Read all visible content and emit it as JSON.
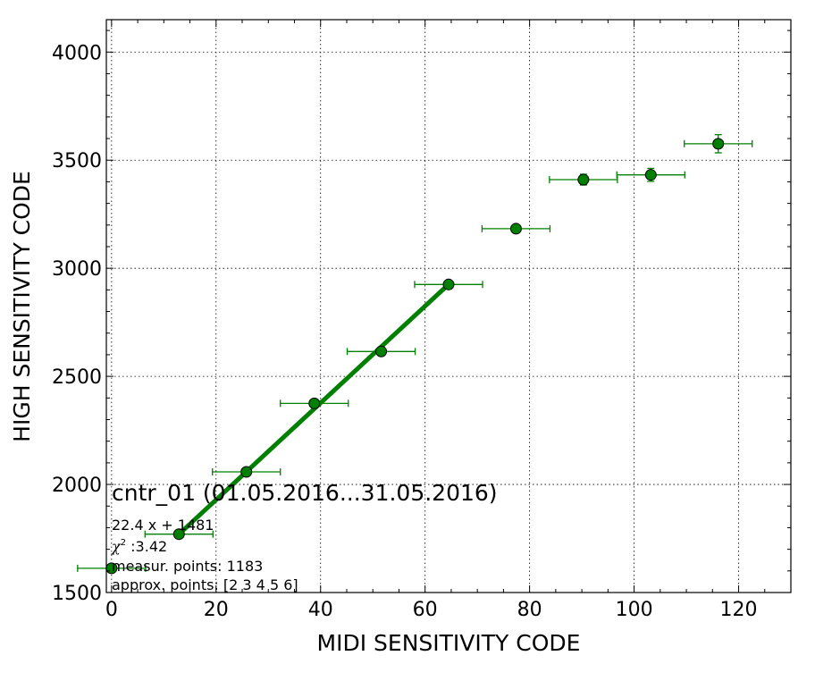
{
  "chart_data": {
    "type": "scatter",
    "xlabel": "MIDI SENSITIVITY CODE",
    "ylabel": "HIGH SENSITIVITY CODE",
    "xlim": [
      -1,
      130
    ],
    "ylim": [
      1500,
      4150
    ],
    "x_ticks": [
      0,
      20,
      40,
      60,
      80,
      100,
      120
    ],
    "y_ticks": [
      1500,
      2000,
      2500,
      3000,
      3500,
      4000
    ],
    "grid": true,
    "colors": {
      "series": "#008000",
      "marker_fill": "#008000",
      "marker_edge": "#000000"
    },
    "series": [
      {
        "points": [
          {
            "x": 0,
            "y": 1612,
            "xerr": 6.5,
            "yerr": 10
          },
          {
            "x": 12.9,
            "y": 1770,
            "xerr": 6.5,
            "yerr": 8
          },
          {
            "x": 25.8,
            "y": 2058,
            "xerr": 6.5,
            "yerr": 8
          },
          {
            "x": 38.8,
            "y": 2375,
            "xerr": 6.5,
            "yerr": 8
          },
          {
            "x": 51.6,
            "y": 2615,
            "xerr": 6.5,
            "yerr": 8
          },
          {
            "x": 64.5,
            "y": 2925,
            "xerr": 6.5,
            "yerr": 8
          },
          {
            "x": 77.4,
            "y": 3183,
            "xerr": 6.5,
            "yerr": 15
          },
          {
            "x": 90.3,
            "y": 3410,
            "xerr": 6.5,
            "yerr": 25
          },
          {
            "x": 103.2,
            "y": 3432,
            "xerr": 6.5,
            "yerr": 30
          },
          {
            "x": 116.1,
            "y": 3576,
            "xerr": 6.5,
            "yerr": 42
          }
        ]
      }
    ],
    "fit": {
      "slope": 22.4,
      "intercept": 1481,
      "x_from": 12.9,
      "x_to": 64.5
    },
    "annotations": {
      "title": "cntr_01 (01.05.2016...31.05.2016)",
      "equation": "22.4 x + 1481",
      "chi2_symbol": "χ",
      "chi2_power": "2",
      "chi2_value": " :3.42",
      "measur_points": "measur. points: 1183",
      "approx_points": "approx. points: [2 3 4 5 6]"
    }
  }
}
